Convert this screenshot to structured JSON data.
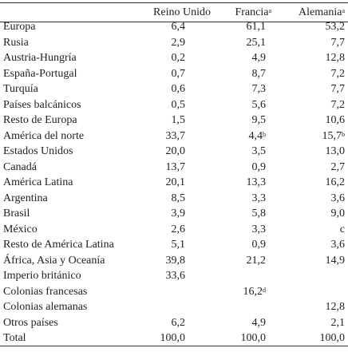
{
  "table": {
    "header": [
      "",
      {
        "text": "Reino Unido"
      },
      {
        "text": "Francia",
        "note": "a"
      },
      {
        "text": "Alemania",
        "note": "a"
      }
    ],
    "rows": [
      [
        "Europa",
        "6,4",
        "61,1",
        "53,2"
      ],
      [
        "Rusia",
        "2,9",
        "25,1",
        "7,7"
      ],
      [
        "Austria-Hungría",
        "0,2",
        "4,9",
        "12,8"
      ],
      [
        "España-Portugal",
        "0,7",
        "8,7",
        "7,2"
      ],
      [
        "Turquía",
        "0,6",
        "7,3",
        "7,7"
      ],
      [
        "Países balcánicos",
        "0,5",
        "5,6",
        "7,2"
      ],
      [
        "Resto de Europa",
        "1,5",
        "9,5",
        "10,6"
      ],
      [
        "América del norte",
        "33,7",
        {
          "text": "4,4",
          "note": "b"
        },
        {
          "text": "15,7",
          "note": "b"
        }
      ],
      [
        "Estados Unidos",
        "20,0",
        "3,5",
        "13,0"
      ],
      [
        "Canadá",
        "13,7",
        "0,9",
        "2,7"
      ],
      [
        "América Latina",
        "20,1",
        "13,3",
        "16,2"
      ],
      [
        "Argentina",
        "8,5",
        "3,3",
        "3,6"
      ],
      [
        "Brasil",
        "3,9",
        "5,8",
        "9,0"
      ],
      [
        "México",
        "2,6",
        "3,3",
        "c"
      ],
      [
        "Resto de América Latina",
        "5,1",
        "0,9",
        "3,6"
      ],
      [
        "África, Asia y Oceanía",
        "39,8",
        "21,2",
        "14,9"
      ],
      [
        "Imperio británico",
        "33,6",
        null,
        null
      ],
      [
        "Colonias francesas",
        null,
        {
          "text": "16,2",
          "note": "d"
        },
        null
      ],
      [
        "Colonias alemanas",
        null,
        null,
        "12,8"
      ],
      [
        "Otros países",
        "6,2",
        "4,9",
        "2,1"
      ],
      [
        "Total",
        "100,0",
        "100,0",
        "100,0"
      ]
    ]
  }
}
